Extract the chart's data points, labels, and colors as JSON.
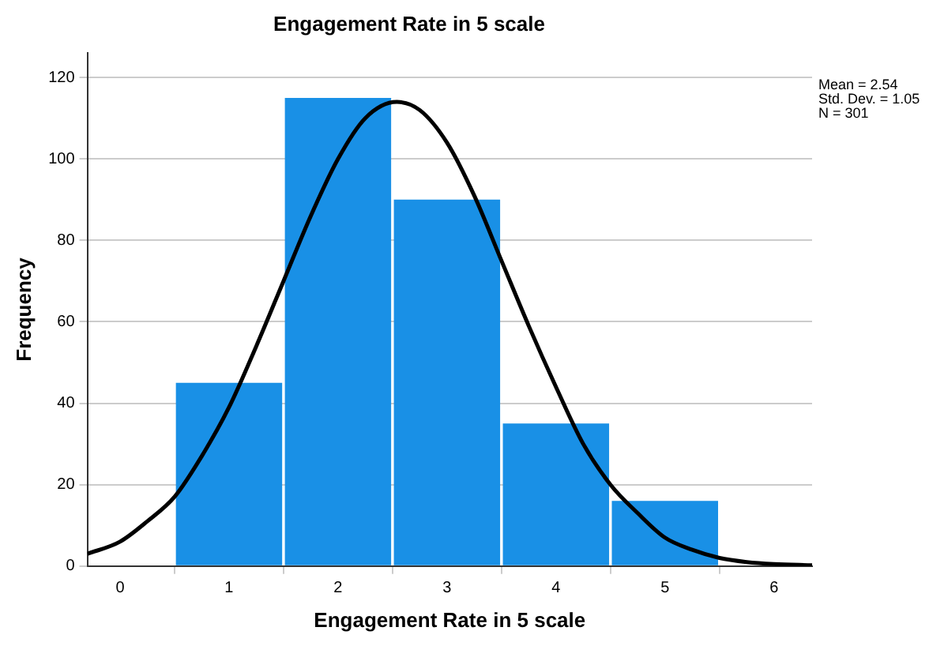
{
  "chart_data": {
    "type": "histogram",
    "title": "Engagement Rate in 5 scale",
    "xlabel": "Engagement Rate in 5 scale",
    "ylabel": "Frequency",
    "bins": [
      0.5,
      1.5,
      2.5,
      3.5,
      4.5,
      5.5
    ],
    "values": [
      45,
      115,
      90,
      35,
      16
    ],
    "color": "#1990e6",
    "series": [
      {
        "type": "line",
        "color": "#000000",
        "x": [
          -0.3,
          0,
          0.25,
          0.5,
          0.75,
          1,
          1.25,
          1.5,
          1.75,
          2,
          2.25,
          2.54,
          2.75,
          3,
          3.25,
          3.5,
          3.75,
          4,
          4.25,
          4.5,
          4.75,
          5,
          5.25,
          5.5,
          5.75,
          6,
          6.35
        ],
        "values": [
          3,
          6,
          11,
          17,
          27,
          39,
          54,
          70,
          86,
          100,
          110,
          114,
          112,
          104,
          91,
          75,
          59,
          44,
          30,
          20,
          13,
          7,
          4,
          2,
          1,
          0.5,
          0.2
        ]
      }
    ],
    "xlim": [
      -0.3,
      6.35
    ],
    "xticks": [
      0,
      1,
      2,
      3,
      4,
      5,
      6
    ],
    "ylim": [
      0,
      126
    ],
    "yticks": [
      0,
      20,
      40,
      60,
      80,
      100,
      120
    ],
    "grid": "y",
    "legend": false,
    "marker": "none",
    "line_style": "solid",
    "annotations": [
      "Mean = 2.54",
      "Std. Dev. = 1.05",
      "N = 301"
    ]
  }
}
